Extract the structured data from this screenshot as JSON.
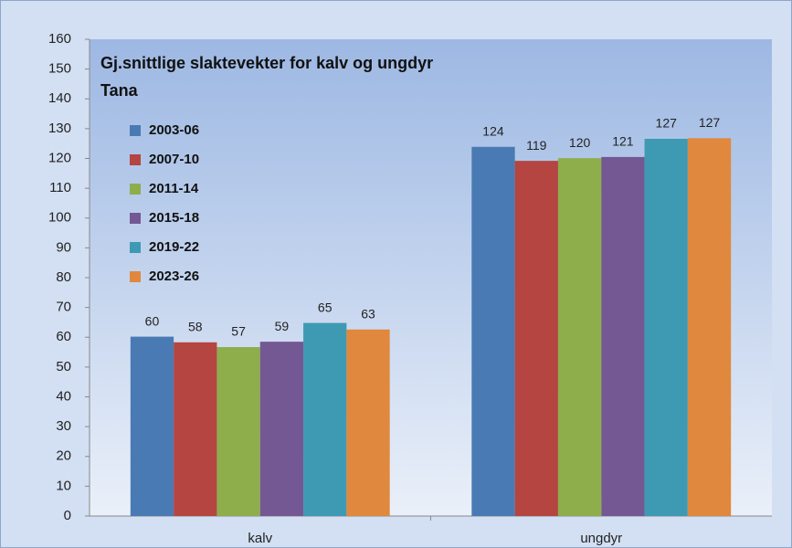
{
  "chart_data": {
    "type": "bar",
    "title": "Gj.snittlige slaktevekter for kalv og ungdyr",
    "subtitle": "Tana",
    "categories": [
      "kalv",
      "ungdyr"
    ],
    "series": [
      {
        "name": "2003-06",
        "color": "#4a7ab4",
        "values": [
          60.2,
          123.9
        ],
        "value_labels": [
          "60",
          "124"
        ]
      },
      {
        "name": "2007-10",
        "color": "#b44541",
        "values": [
          58.3,
          119.2
        ],
        "value_labels": [
          "58",
          "119"
        ]
      },
      {
        "name": "2011-14",
        "color": "#8eae4b",
        "values": [
          56.7,
          120.1
        ],
        "value_labels": [
          "57",
          "120"
        ]
      },
      {
        "name": "2015-18",
        "color": "#735893",
        "values": [
          58.5,
          120.5
        ],
        "value_labels": [
          "59",
          "121"
        ]
      },
      {
        "name": "2019-22",
        "color": "#3e9ab3",
        "values": [
          64.8,
          126.6
        ],
        "value_labels": [
          "65",
          "127"
        ]
      },
      {
        "name": "2023-26",
        "color": "#e0883e",
        "values": [
          62.6,
          126.8
        ],
        "value_labels": [
          "63",
          "127"
        ]
      }
    ],
    "ylim": [
      0,
      160
    ],
    "yticks": [
      0,
      10,
      20,
      30,
      40,
      50,
      60,
      70,
      80,
      90,
      100,
      110,
      120,
      130,
      140,
      150,
      160
    ],
    "grid": false
  }
}
